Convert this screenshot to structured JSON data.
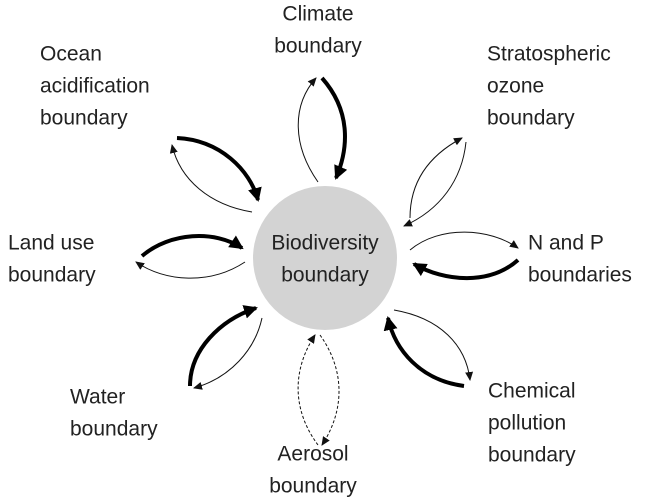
{
  "center": {
    "lines": [
      "Biodiversity",
      "boundary"
    ]
  },
  "nodes": [
    {
      "lines": [
        "Climate",
        "boundary"
      ]
    },
    {
      "lines": [
        "Stratospheric",
        "ozone",
        "boundary"
      ]
    },
    {
      "lines": [
        "N and P",
        "boundaries"
      ]
    },
    {
      "lines": [
        "Chemical",
        "pollution",
        "boundary"
      ]
    },
    {
      "lines": [
        "Aerosol",
        "boundary"
      ]
    },
    {
      "lines": [
        "Water",
        "boundary"
      ]
    },
    {
      "lines": [
        "Land use",
        "boundary"
      ]
    },
    {
      "lines": [
        "Ocean",
        "acidification",
        "boundary"
      ]
    }
  ]
}
